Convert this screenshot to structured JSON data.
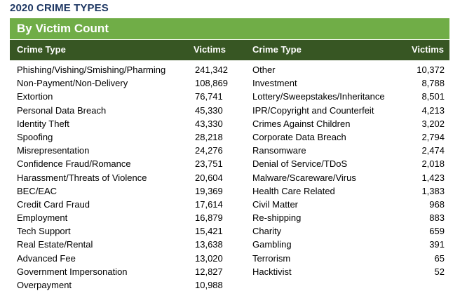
{
  "title": "2020 CRIME TYPES",
  "subtitle": "By Victim Count",
  "headers": {
    "crime_type": "Crime Type",
    "victims": "Victims"
  },
  "left_rows": [
    {
      "type": "Phishing/Vishing/Smishing/Pharming",
      "victims": "241,342"
    },
    {
      "type": "Non-Payment/Non-Delivery",
      "victims": "108,869"
    },
    {
      "type": "Extortion",
      "victims": "76,741"
    },
    {
      "type": "Personal Data Breach",
      "victims": "45,330"
    },
    {
      "type": "Identity Theft",
      "victims": "43,330"
    },
    {
      "type": "Spoofing",
      "victims": "28,218"
    },
    {
      "type": "Misrepresentation",
      "victims": "24,276"
    },
    {
      "type": "Confidence Fraud/Romance",
      "victims": "23,751"
    },
    {
      "type": "Harassment/Threats of Violence",
      "victims": "20,604"
    },
    {
      "type": "BEC/EAC",
      "victims": "19,369"
    },
    {
      "type": "Credit Card Fraud",
      "victims": "17,614"
    },
    {
      "type": "Employment",
      "victims": "16,879"
    },
    {
      "type": "Tech Support",
      "victims": "15,421"
    },
    {
      "type": "Real Estate/Rental",
      "victims": "13,638"
    },
    {
      "type": "Advanced Fee",
      "victims": "13,020"
    },
    {
      "type": "Government Impersonation",
      "victims": "12,827"
    },
    {
      "type": "Overpayment",
      "victims": "10,988"
    }
  ],
  "right_rows": [
    {
      "type": "Other",
      "victims": "10,372"
    },
    {
      "type": "Investment",
      "victims": "8,788"
    },
    {
      "type": "Lottery/Sweepstakes/Inheritance",
      "victims": "8,501"
    },
    {
      "type": "IPR/Copyright and Counterfeit",
      "victims": "4,213"
    },
    {
      "type": "Crimes Against Children",
      "victims": "3,202"
    },
    {
      "type": "Corporate Data Breach",
      "victims": "2,794"
    },
    {
      "type": "Ransomware",
      "victims": "2,474"
    },
    {
      "type": "Denial of Service/TDoS",
      "victims": "2,018"
    },
    {
      "type": "Malware/Scareware/Virus",
      "victims": "1,423"
    },
    {
      "type": "Health Care Related",
      "victims": "1,383"
    },
    {
      "type": "Civil Matter",
      "victims": "968"
    },
    {
      "type": "Re-shipping",
      "victims": "883"
    },
    {
      "type": "Charity",
      "victims": "659"
    },
    {
      "type": "Gambling",
      "victims": "391"
    },
    {
      "type": "Terrorism",
      "victims": "65"
    },
    {
      "type": "Hacktivist",
      "victims": "52"
    }
  ]
}
